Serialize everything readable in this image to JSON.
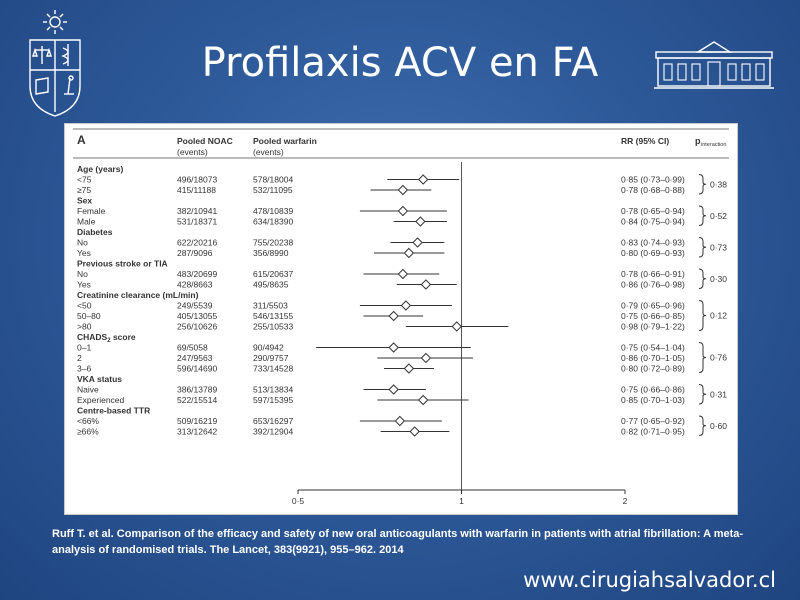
{
  "slide": {
    "title": "Profilaxis ACV en FA",
    "citation": "Ruff T. et al. Comparison of the efficacy and safety of new oral anticoagulants with warfarin in patients with atrial fibrillation: A meta-analysis of randomised trials. The Lancet, 383(9921), 955–962. 2014",
    "website": "www.cirugiahsalvador.cl"
  },
  "colors": {
    "background": "#2e5a9a",
    "panel": "#ffffff",
    "text": "#ffffff"
  },
  "chart_data": {
    "type": "forest",
    "panel_label": "A",
    "columns": {
      "noac": [
        "Pooled NOAC",
        "(events)"
      ],
      "warfarin": [
        "Pooled warfarin",
        "(events)"
      ],
      "rr": "RR (95% CI)",
      "p_main": "p",
      "p_sub": "interaction"
    },
    "xscale": "log",
    "xlim": [
      0.5,
      2
    ],
    "xticks": [
      {
        "v": 0.5,
        "label": "0·5"
      },
      {
        "v": 1,
        "label": "1"
      },
      {
        "v": 2,
        "label": "2"
      }
    ],
    "rows": [
      {
        "kind": "header",
        "label": "Age (years)"
      },
      {
        "kind": "data",
        "label": "<75",
        "noac": "496/18073",
        "warfarin": "578/18004",
        "rr": 0.85,
        "lo": 0.73,
        "hi": 0.99,
        "ci": "0·85 (0·73–0·99)"
      },
      {
        "kind": "data",
        "label": "≥75",
        "noac": "415/11188",
        "warfarin": "532/11095",
        "rr": 0.78,
        "lo": 0.68,
        "hi": 0.88,
        "ci": "0·78 (0·68–0·88)"
      },
      {
        "kind": "header",
        "label": "Sex"
      },
      {
        "kind": "data",
        "label": "Female",
        "noac": "382/10941",
        "warfarin": "478/10839",
        "rr": 0.78,
        "lo": 0.65,
        "hi": 0.94,
        "ci": "0·78 (0·65–0·94)"
      },
      {
        "kind": "data",
        "label": "Male",
        "noac": "531/18371",
        "warfarin": "634/18390",
        "rr": 0.84,
        "lo": 0.75,
        "hi": 0.94,
        "ci": "0·84 (0·75–0·94)"
      },
      {
        "kind": "header",
        "label": "Diabetes"
      },
      {
        "kind": "data",
        "label": "No",
        "noac": "622/20216",
        "warfarin": "755/20238",
        "rr": 0.83,
        "lo": 0.74,
        "hi": 0.93,
        "ci": "0·83 (0·74–0·93)"
      },
      {
        "kind": "data",
        "label": "Yes",
        "noac": "287/9096",
        "warfarin": "356/8990",
        "rr": 0.8,
        "lo": 0.69,
        "hi": 0.93,
        "ci": "0·80 (0·69–0·93)"
      },
      {
        "kind": "header",
        "label": "Previous stroke or TIA"
      },
      {
        "kind": "data",
        "label": "No",
        "noac": "483/20699",
        "warfarin": "615/20637",
        "rr": 0.78,
        "lo": 0.66,
        "hi": 0.91,
        "ci": "0·78 (0·66–0·91)"
      },
      {
        "kind": "data",
        "label": "Yes",
        "noac": "428/8663",
        "warfarin": "495/8635",
        "rr": 0.86,
        "lo": 0.76,
        "hi": 0.98,
        "ci": "0·86 (0·76–0·98)"
      },
      {
        "kind": "header",
        "label": "Creatinine clearance (mL/min)"
      },
      {
        "kind": "data",
        "label": "<50",
        "noac": "249/5539",
        "warfarin": "311/5503",
        "rr": 0.79,
        "lo": 0.65,
        "hi": 0.96,
        "ci": "0·79 (0·65–0·96)"
      },
      {
        "kind": "data",
        "label": "50–80",
        "noac": "405/13055",
        "warfarin": "546/13155",
        "rr": 0.75,
        "lo": 0.66,
        "hi": 0.85,
        "ci": "0·75 (0·66–0·85)"
      },
      {
        "kind": "data",
        "label": ">80",
        "noac": "256/10626",
        "warfarin": "255/10533",
        "rr": 0.98,
        "lo": 0.79,
        "hi": 1.22,
        "ci": "0·98 (0·79–1·22)"
      },
      {
        "kind": "header",
        "label": "CHADS",
        "sub": "2",
        "suffix": " score"
      },
      {
        "kind": "data",
        "label": "0–1",
        "noac": "69/5058",
        "warfarin": "90/4942",
        "rr": 0.75,
        "lo": 0.54,
        "hi": 1.04,
        "ci": "0·75 (0·54–1·04)"
      },
      {
        "kind": "data",
        "label": "2",
        "noac": "247/9563",
        "warfarin": "290/9757",
        "rr": 0.86,
        "lo": 0.7,
        "hi": 1.05,
        "ci": "0·86 (0·70–1·05)"
      },
      {
        "kind": "data",
        "label": "3–6",
        "noac": "596/14690",
        "warfarin": "733/14528",
        "rr": 0.8,
        "lo": 0.72,
        "hi": 0.89,
        "ci": "0·80 (0·72–0·89)"
      },
      {
        "kind": "header",
        "label": "VKA status"
      },
      {
        "kind": "data",
        "label": "Naive",
        "noac": "386/13789",
        "warfarin": "513/13834",
        "rr": 0.75,
        "lo": 0.66,
        "hi": 0.86,
        "ci": "0·75 (0·66–0·86)"
      },
      {
        "kind": "data",
        "label": "Experienced",
        "noac": "522/15514",
        "warfarin": "597/15395",
        "rr": 0.85,
        "lo": 0.7,
        "hi": 1.03,
        "ci": "0·85 (0·70–1·03)"
      },
      {
        "kind": "header",
        "label": "Centre-based TTR"
      },
      {
        "kind": "data",
        "label": "<66%",
        "noac": "509/16219",
        "warfarin": "653/16297",
        "rr": 0.77,
        "lo": 0.65,
        "hi": 0.92,
        "ci": "0·77 (0·65–0·92)"
      },
      {
        "kind": "data",
        "label": "≥66%",
        "noac": "313/12642",
        "warfarin": "392/12904",
        "rr": 0.82,
        "lo": 0.71,
        "hi": 0.95,
        "ci": "0·82 (0·71–0·95)"
      }
    ],
    "interactions": [
      {
        "first": 1,
        "last": 2,
        "p": "0·38"
      },
      {
        "first": 4,
        "last": 5,
        "p": "0·52"
      },
      {
        "first": 7,
        "last": 8,
        "p": "0·73"
      },
      {
        "first": 10,
        "last": 11,
        "p": "0·30"
      },
      {
        "first": 13,
        "last": 15,
        "p": "0·12"
      },
      {
        "first": 17,
        "last": 19,
        "p": "0·76"
      },
      {
        "first": 21,
        "last": 22,
        "p": "0·31"
      },
      {
        "first": 24,
        "last": 25,
        "p": "0·60"
      }
    ]
  }
}
